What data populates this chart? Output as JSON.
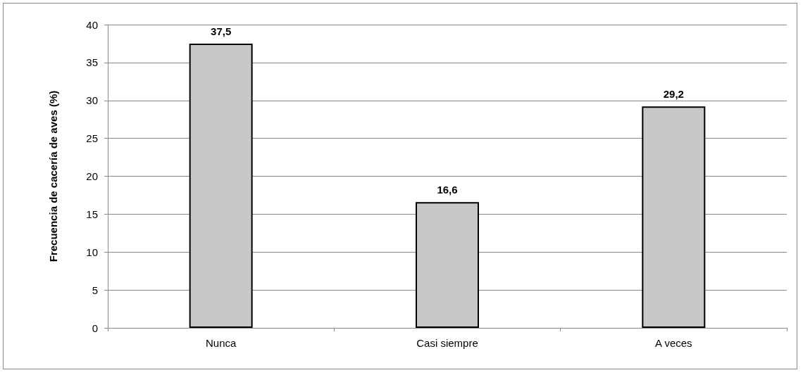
{
  "chart_data": {
    "type": "bar",
    "ylabel": "Frecuencia de cacería de aves (%)",
    "categories": [
      "Nunca",
      "Casi siempre",
      "A veces"
    ],
    "values": [
      37.5,
      16.6,
      29.2
    ],
    "value_labels": [
      "37,5",
      "16,6",
      "29,2"
    ],
    "color": "#c8c8c8",
    "ylim": [
      0,
      40
    ],
    "yticks": [
      0,
      5,
      10,
      15,
      20,
      25,
      30,
      35,
      40
    ],
    "grid": "y"
  }
}
